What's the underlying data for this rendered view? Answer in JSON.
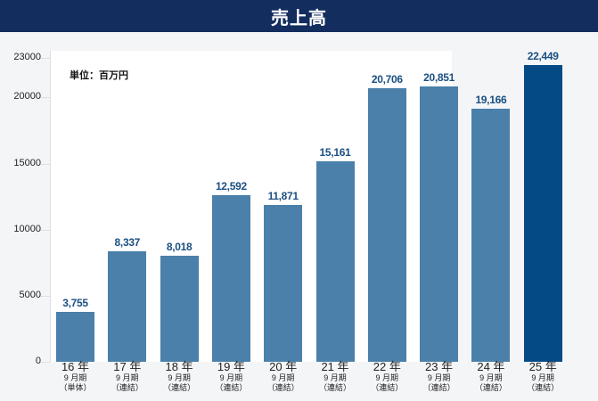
{
  "header": {
    "title": "売上高"
  },
  "unit_label": "単位：百万円",
  "y_ticks": [
    "23000",
    "20000",
    "15000",
    "10000",
    "5000",
    "0"
  ],
  "colors": {
    "header_bg": "#132d5e",
    "bar": "#4a80aa",
    "bar_highlight": "#044a84",
    "value_text": "#1b4f82"
  },
  "categories": [
    {
      "year": "16 年",
      "period": "9 月期",
      "type": "（単体）"
    },
    {
      "year": "17 年",
      "period": "9 月期",
      "type": "（連結）"
    },
    {
      "year": "18 年",
      "period": "9 月期",
      "type": "（連結）"
    },
    {
      "year": "19 年",
      "period": "9 月期",
      "type": "（連結）"
    },
    {
      "year": "20 年",
      "period": "9 月期",
      "type": "（連結）"
    },
    {
      "year": "21 年",
      "period": "9 月期",
      "type": "（連結）"
    },
    {
      "year": "22 年",
      "period": "9 月期",
      "type": "（連結）"
    },
    {
      "year": "23 年",
      "period": "9 月期",
      "type": "（連結）"
    },
    {
      "year": "24 年",
      "period": "9 月期",
      "type": "（連結）"
    },
    {
      "year": "25 年",
      "period": "9 月期",
      "type": "（連結）"
    }
  ],
  "value_labels": [
    "3,755",
    "8,337",
    "8,018",
    "12,592",
    "11,871",
    "15,161",
    "20,706",
    "20,851",
    "19,166",
    "22,449"
  ],
  "chart_data": {
    "type": "bar",
    "title": "売上高",
    "subtitle": "単位：百万円",
    "categories": [
      "16年9月期（単体）",
      "17年9月期（連結）",
      "18年9月期（連結）",
      "19年9月期（連結）",
      "20年9月期（連結）",
      "21年9月期（連結）",
      "22年9月期（連結）",
      "23年9月期（連結）",
      "24年9月期（連結）",
      "25年9月期（連結）"
    ],
    "values": [
      3755,
      8337,
      8018,
      12592,
      11871,
      15161,
      20706,
      20851,
      19166,
      22449
    ],
    "xlabel": "",
    "ylabel": "百万円",
    "ylim": [
      0,
      23000
    ],
    "yticks": [
      0,
      5000,
      10000,
      15000,
      20000,
      23000
    ],
    "grid": false,
    "legend": null,
    "highlight_index": 9
  }
}
